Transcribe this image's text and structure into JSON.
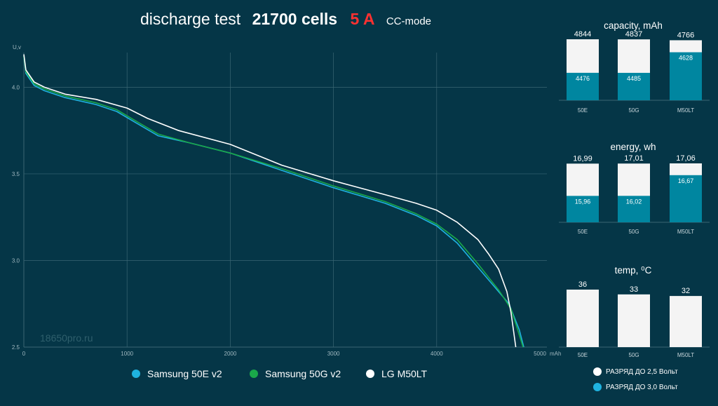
{
  "title": {
    "main": "discharge test",
    "cells": "21700 cells",
    "amp": "5 A",
    "mode": "CC-mode"
  },
  "watermark": "18650pro.ru",
  "colors": {
    "bg": "#053647",
    "s50e": "#1fb3e0",
    "s50g": "#1aa84a",
    "m50lt": "#ffffff",
    "bar_low": "#0086a0",
    "bar_high": "#f4f4f4",
    "grid": "#3a6673",
    "accent": "#ff3131"
  },
  "legend": [
    {
      "label": "Samsung 50E v2",
      "color": "#1fb3e0"
    },
    {
      "label": "Samsung 50G v2",
      "color": "#1aa84a"
    },
    {
      "label": "LG M50LT",
      "color": "#ffffff"
    }
  ],
  "bar_legend": [
    {
      "label": "РАЗРЯД ДО 2,5 Вольт",
      "color": "#ffffff"
    },
    {
      "label": "РАЗРЯД ДО 3,0 Вольт",
      "color": "#1fb3e0"
    }
  ],
  "chart_data": [
    {
      "type": "line",
      "title": "discharge test 21700 cells 5 A CC-mode",
      "ylabel": "U,v",
      "xlabel": "mAh",
      "xlim": [
        0,
        5000
      ],
      "ylim": [
        2.5,
        4.2
      ],
      "xticks": [
        0,
        1000,
        2000,
        3000,
        4000,
        5000
      ],
      "yticks": [
        2.5,
        3.0,
        3.5,
        4.0
      ],
      "ytick_labels": [
        "2.5",
        "3.0",
        "3.5",
        "4.0"
      ],
      "grid": true,
      "series": [
        {
          "name": "Samsung 50E v2",
          "color": "#1fb3e0",
          "points": [
            [
              0,
              4.18
            ],
            [
              20,
              4.08
            ],
            [
              100,
              4.01
            ],
            [
              200,
              3.98
            ],
            [
              400,
              3.94
            ],
            [
              700,
              3.9
            ],
            [
              900,
              3.86
            ],
            [
              1100,
              3.79
            ],
            [
              1300,
              3.72
            ],
            [
              1600,
              3.68
            ],
            [
              2000,
              3.62
            ],
            [
              2500,
              3.52
            ],
            [
              3000,
              3.42
            ],
            [
              3500,
              3.33
            ],
            [
              3800,
              3.26
            ],
            [
              4000,
              3.2
            ],
            [
              4200,
              3.1
            ],
            [
              4400,
              2.96
            ],
            [
              4600,
              2.82
            ],
            [
              4700,
              2.75
            ],
            [
              4800,
              2.6
            ],
            [
              4844,
              2.5
            ]
          ]
        },
        {
          "name": "Samsung 50G v2",
          "color": "#1aa84a",
          "points": [
            [
              0,
              4.18
            ],
            [
              20,
              4.09
            ],
            [
              100,
              4.02
            ],
            [
              200,
              3.99
            ],
            [
              400,
              3.95
            ],
            [
              700,
              3.91
            ],
            [
              900,
              3.87
            ],
            [
              1100,
              3.8
            ],
            [
              1300,
              3.73
            ],
            [
              1600,
              3.68
            ],
            [
              2000,
              3.62
            ],
            [
              2500,
              3.53
            ],
            [
              3000,
              3.43
            ],
            [
              3500,
              3.34
            ],
            [
              3800,
              3.27
            ],
            [
              4000,
              3.21
            ],
            [
              4200,
              3.12
            ],
            [
              4400,
              2.98
            ],
            [
              4600,
              2.83
            ],
            [
              4720,
              2.72
            ],
            [
              4800,
              2.57
            ],
            [
              4837,
              2.5
            ]
          ]
        },
        {
          "name": "LG M50LT",
          "color": "#ffffff",
          "points": [
            [
              0,
              4.19
            ],
            [
              20,
              4.1
            ],
            [
              100,
              4.03
            ],
            [
              200,
              4.0
            ],
            [
              400,
              3.96
            ],
            [
              700,
              3.93
            ],
            [
              1000,
              3.88
            ],
            [
              1200,
              3.82
            ],
            [
              1500,
              3.75
            ],
            [
              2000,
              3.67
            ],
            [
              2500,
              3.55
            ],
            [
              3000,
              3.46
            ],
            [
              3500,
              3.38
            ],
            [
              3800,
              3.33
            ],
            [
              4000,
              3.29
            ],
            [
              4200,
              3.22
            ],
            [
              4400,
              3.12
            ],
            [
              4500,
              3.04
            ],
            [
              4600,
              2.95
            ],
            [
              4680,
              2.82
            ],
            [
              4720,
              2.7
            ],
            [
              4766,
              2.5
            ]
          ]
        }
      ]
    },
    {
      "type": "bar",
      "title": "capacity, mAh",
      "categories": [
        "50E",
        "50G",
        "M50LT"
      ],
      "series": [
        {
          "name": "РАЗРЯД ДО 2,5 Вольт",
          "values": [
            4844,
            4837,
            4766
          ],
          "labels": [
            "4844",
            "4837",
            "4766"
          ]
        },
        {
          "name": "РАЗРЯД ДО 3,0 Вольт",
          "values": [
            4476,
            4485,
            4628
          ],
          "labels": [
            "4476",
            "4485",
            "4628"
          ]
        }
      ]
    },
    {
      "type": "bar",
      "title": "energy, wh",
      "categories": [
        "50E",
        "50G",
        "M50LT"
      ],
      "series": [
        {
          "name": "РАЗРЯД ДО 2,5 Вольт",
          "values": [
            16.99,
            17.01,
            17.06
          ],
          "labels": [
            "16,99",
            "17,01",
            "17,06"
          ]
        },
        {
          "name": "РАЗРЯД ДО 3,0 Вольт",
          "values": [
            15.96,
            16.02,
            16.67
          ],
          "labels": [
            "15,96",
            "16,02",
            "16,67"
          ]
        }
      ]
    },
    {
      "type": "bar",
      "title": "temp, ⁰C",
      "categories": [
        "50E",
        "50G",
        "M50LT"
      ],
      "series": [
        {
          "values": [
            36,
            33,
            32
          ],
          "labels": [
            "36",
            "33",
            "32"
          ]
        }
      ]
    }
  ]
}
